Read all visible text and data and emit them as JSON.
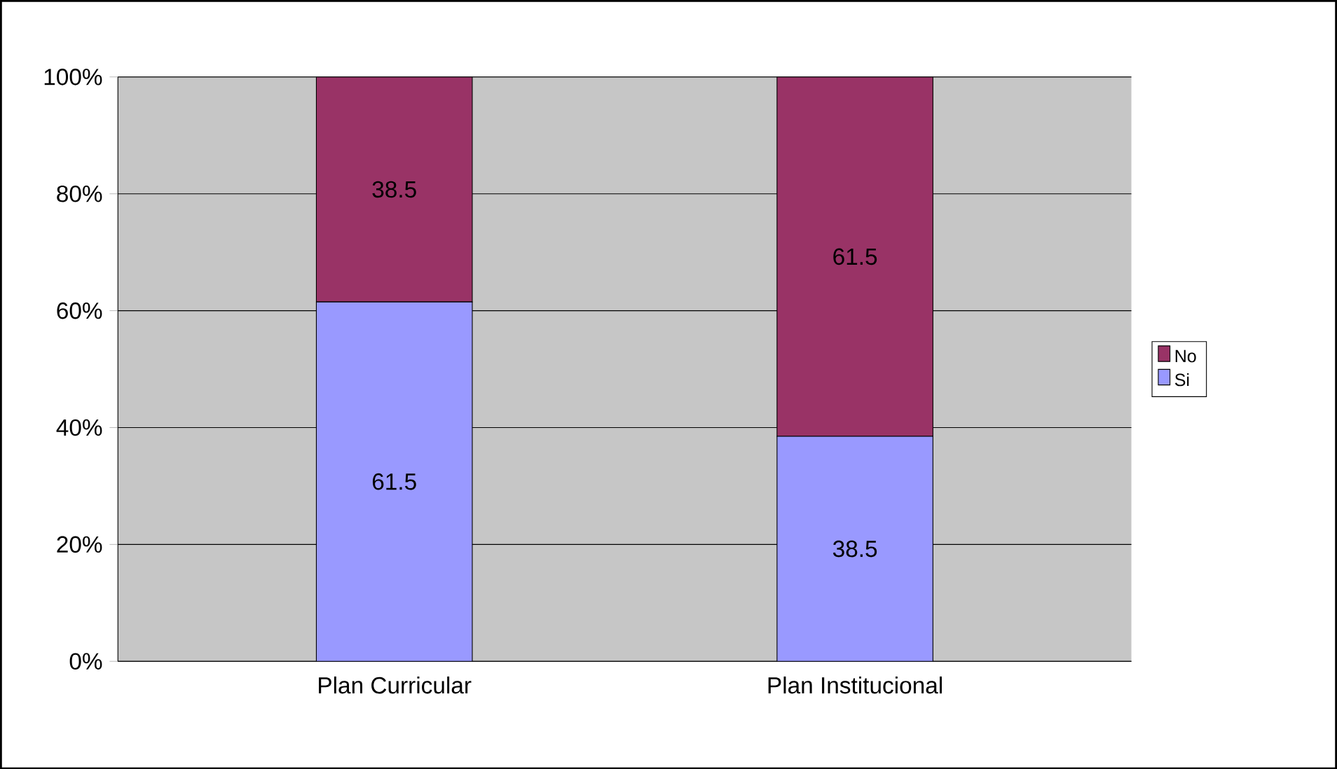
{
  "chart_data": {
    "type": "bar",
    "stacked": true,
    "categories": [
      "Plan Curricular",
      "Plan Institucional"
    ],
    "series": [
      {
        "name": "Si",
        "color": "#9999ff",
        "values": [
          61.5,
          38.5
        ]
      },
      {
        "name": "No",
        "color": "#993366",
        "values": [
          38.5,
          61.5
        ]
      }
    ],
    "ylim": [
      0,
      100
    ],
    "yticks": [
      {
        "value": 0,
        "label": "0%"
      },
      {
        "value": 20,
        "label": "20%"
      },
      {
        "value": 40,
        "label": "40%"
      },
      {
        "value": 60,
        "label": "60%"
      },
      {
        "value": 80,
        "label": "80%"
      },
      {
        "value": 100,
        "label": "100%"
      }
    ],
    "grid": "y",
    "legend": "right",
    "data_labels": true
  }
}
